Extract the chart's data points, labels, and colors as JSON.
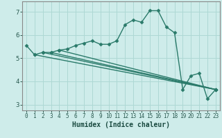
{
  "xlabel": "Humidex (Indice chaleur)",
  "bg_color": "#ceecea",
  "grid_color": "#aed8d4",
  "line_color": "#2a7a6a",
  "marker": "D",
  "markersize": 2.5,
  "linewidth": 1.0,
  "xlim": [
    -0.5,
    23.5
  ],
  "ylim": [
    2.75,
    7.45
  ],
  "yticks": [
    3,
    4,
    5,
    6,
    7
  ],
  "xticks": [
    0,
    1,
    2,
    3,
    4,
    5,
    6,
    7,
    8,
    9,
    10,
    11,
    12,
    13,
    14,
    15,
    16,
    17,
    18,
    19,
    20,
    21,
    22,
    23
  ],
  "series": [
    [
      0,
      5.55
    ],
    [
      1,
      5.15
    ],
    [
      2,
      5.25
    ],
    [
      3,
      5.25
    ],
    [
      4,
      5.35
    ],
    [
      5,
      5.4
    ],
    [
      6,
      5.55
    ],
    [
      7,
      5.65
    ],
    [
      8,
      5.75
    ],
    [
      9,
      5.6
    ],
    [
      10,
      5.6
    ],
    [
      11,
      5.75
    ],
    [
      12,
      6.45
    ],
    [
      13,
      6.65
    ],
    [
      14,
      6.55
    ],
    [
      15,
      7.05
    ],
    [
      16,
      7.05
    ],
    [
      17,
      6.35
    ],
    [
      18,
      6.1
    ],
    [
      19,
      3.65
    ],
    [
      20,
      4.25
    ],
    [
      21,
      4.35
    ],
    [
      22,
      3.25
    ],
    [
      23,
      3.65
    ]
  ],
  "extra_lines": [
    [
      [
        1,
        5.15
      ],
      [
        23,
        3.65
      ]
    ],
    [
      [
        2,
        5.25
      ],
      [
        23,
        3.65
      ]
    ],
    [
      [
        3,
        5.25
      ],
      [
        23,
        3.65
      ]
    ],
    [
      [
        4,
        5.35
      ],
      [
        23,
        3.65
      ]
    ]
  ]
}
